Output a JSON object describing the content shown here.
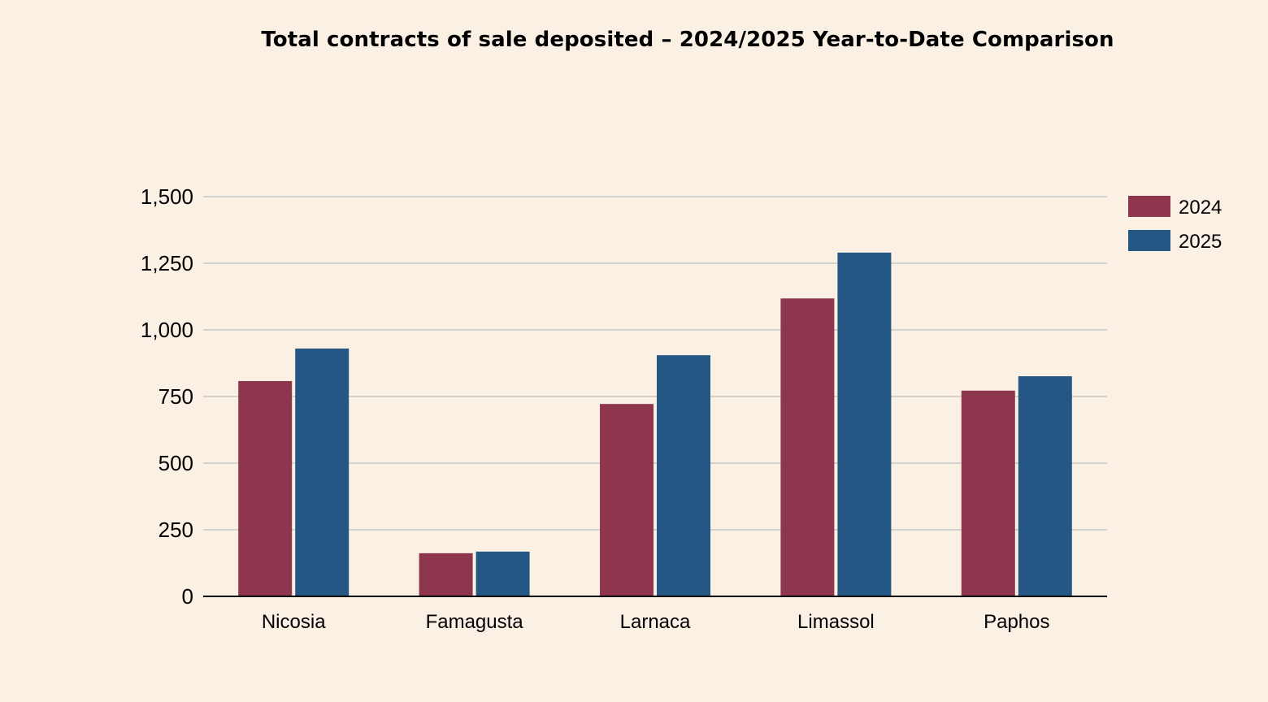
{
  "chart_data": {
    "type": "bar",
    "title": "Total contracts of sale deposited – 2024/2025 Year-to-Date Comparison",
    "xlabel": "",
    "ylabel": "",
    "categories": [
      "Nicosia",
      "Famagusta",
      "Larnaca",
      "Limassol",
      "Paphos"
    ],
    "series": [
      {
        "name": "2024",
        "color": "#8f364f",
        "values": [
          808,
          162,
          722,
          1118,
          772
        ]
      },
      {
        "name": "2025",
        "color": "#245784",
        "values": [
          930,
          168,
          905,
          1290,
          826
        ]
      }
    ],
    "ylim": [
      0,
      1500
    ],
    "yticks": [
      0,
      250,
      500,
      750,
      1000,
      1250,
      1500
    ],
    "ytick_labels": [
      "0",
      "250",
      "500",
      "750",
      "1,000",
      "1,250",
      "1,500"
    ],
    "grid": true,
    "legend_position": "top-right"
  },
  "colors": {
    "background": "#fbf0e4",
    "gridline": "#c8c8c8",
    "axis": "#000000"
  }
}
